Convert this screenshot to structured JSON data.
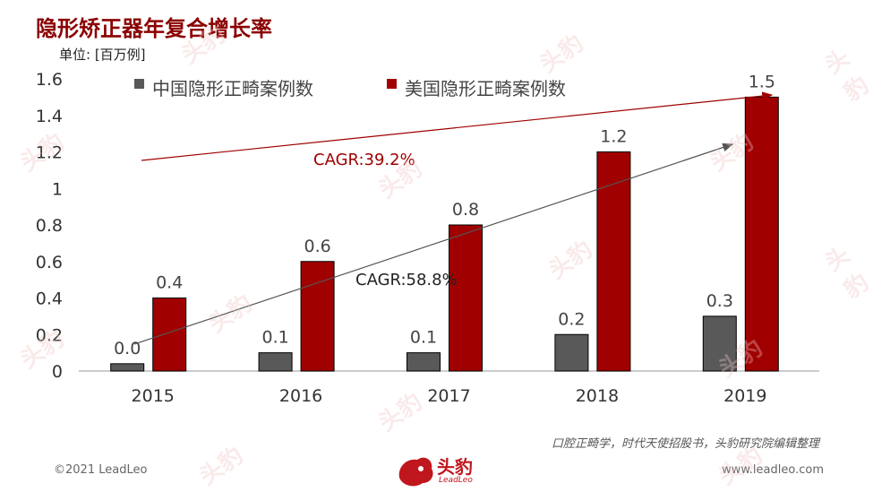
{
  "title": "隐形矫正器年复合增长率",
  "unit_label": "单位: [百万例]",
  "source": "口腔正畸学，时代天使招股书，头豹研究院编辑整理",
  "footer": {
    "copyright": "©2021 LeadLeo",
    "website": "www.leadleo.com"
  },
  "logo": {
    "text": "头豹",
    "sub": "LeadLeo"
  },
  "watermark": "头豹",
  "chart_data": {
    "type": "bar",
    "categories": [
      "2015",
      "2016",
      "2017",
      "2018",
      "2019"
    ],
    "series": [
      {
        "name": "中国隐形正畸案例数",
        "color": "#595959",
        "values": [
          0.04,
          0.1,
          0.1,
          0.2,
          0.3
        ],
        "labels": [
          "0.0",
          "0.1",
          "0.1",
          "0.2",
          "0.3"
        ]
      },
      {
        "name": "美国隐形正畸案例数",
        "color": "#a00000",
        "values": [
          0.4,
          0.6,
          0.8,
          1.2,
          1.5
        ],
        "labels": [
          "0.4",
          "0.6",
          "0.8",
          "1.2",
          "1.5"
        ]
      }
    ],
    "ylim": [
      0,
      1.6
    ],
    "yticks": [
      "0",
      "0.2",
      "0.4",
      "0.6",
      "0.8",
      "1",
      "1.2",
      "1.4",
      "1.6"
    ],
    "legend_position": "top",
    "grid": false,
    "annotations": [
      {
        "text": "CAGR:39.2%",
        "color": "#a00000",
        "series": "美国隐形正畸案例数"
      },
      {
        "text": "CAGR:58.8%",
        "color": "#222222",
        "series": "中国隐形正畸案例数"
      }
    ]
  }
}
